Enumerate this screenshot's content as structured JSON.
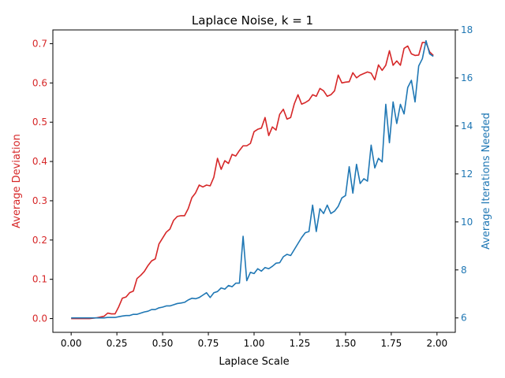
{
  "chart_data": {
    "type": "line",
    "title": "Laplace Noise, k = 1",
    "xlabel": "Laplace Scale",
    "ylabel_left": "Average Deviation",
    "ylabel_right": "Average Iterations Needed",
    "xlim": [
      -0.1,
      2.1
    ],
    "ylim_left": [
      -0.035,
      0.735
    ],
    "ylim_right": [
      5.4,
      18.0
    ],
    "xticks": [
      "0.00",
      "0.25",
      "0.50",
      "0.75",
      "1.00",
      "1.25",
      "1.50",
      "1.75",
      "2.00"
    ],
    "yticks_left": [
      "0.0",
      "0.1",
      "0.2",
      "0.3",
      "0.4",
      "0.5",
      "0.6",
      "0.7"
    ],
    "yticks_right": [
      "6",
      "8",
      "10",
      "12",
      "14",
      "16",
      "18"
    ],
    "grid": false,
    "colors": {
      "left": "#d62728",
      "right": "#1f77b4"
    },
    "x": [
      0.0,
      0.02,
      0.04,
      0.06,
      0.08,
      0.1,
      0.12,
      0.14,
      0.16,
      0.18,
      0.2,
      0.22,
      0.24,
      0.26,
      0.28,
      0.3,
      0.32,
      0.34,
      0.36,
      0.38,
      0.4,
      0.42,
      0.44,
      0.46,
      0.48,
      0.5,
      0.52,
      0.54,
      0.56,
      0.58,
      0.6,
      0.62,
      0.64,
      0.66,
      0.68,
      0.7,
      0.72,
      0.74,
      0.76,
      0.78,
      0.8,
      0.82,
      0.84,
      0.86,
      0.88,
      0.9,
      0.92,
      0.94,
      0.96,
      0.98,
      1.0,
      1.02,
      1.04,
      1.06,
      1.08,
      1.1,
      1.12,
      1.14,
      1.16,
      1.18,
      1.2,
      1.22,
      1.24,
      1.26,
      1.28,
      1.3,
      1.32,
      1.34,
      1.36,
      1.38,
      1.4,
      1.42,
      1.44,
      1.46,
      1.48,
      1.5,
      1.52,
      1.54,
      1.56,
      1.58,
      1.6,
      1.62,
      1.64,
      1.66,
      1.68,
      1.7,
      1.72,
      1.74,
      1.76,
      1.78,
      1.8,
      1.82,
      1.84,
      1.86,
      1.88,
      1.9,
      1.92,
      1.94,
      1.96,
      1.98
    ],
    "series": [
      {
        "name": "Average Deviation",
        "axis": "left",
        "values": [
          0.0,
          0.0,
          0.0,
          0.0,
          0.0,
          0.0,
          0.001,
          0.002,
          0.004,
          0.006,
          0.014,
          0.012,
          0.012,
          0.03,
          0.052,
          0.055,
          0.066,
          0.07,
          0.102,
          0.11,
          0.12,
          0.135,
          0.147,
          0.152,
          0.19,
          0.205,
          0.22,
          0.228,
          0.25,
          0.26,
          0.262,
          0.262,
          0.28,
          0.308,
          0.32,
          0.34,
          0.335,
          0.34,
          0.338,
          0.36,
          0.408,
          0.38,
          0.402,
          0.395,
          0.418,
          0.414,
          0.428,
          0.44,
          0.44,
          0.446,
          0.476,
          0.482,
          0.485,
          0.512,
          0.466,
          0.488,
          0.48,
          0.52,
          0.533,
          0.508,
          0.512,
          0.547,
          0.57,
          0.546,
          0.55,
          0.556,
          0.57,
          0.566,
          0.586,
          0.58,
          0.566,
          0.57,
          0.58,
          0.62,
          0.6,
          0.602,
          0.603,
          0.626,
          0.613,
          0.62,
          0.624,
          0.628,
          0.625,
          0.608,
          0.646,
          0.632,
          0.645,
          0.682,
          0.645,
          0.656,
          0.645,
          0.688,
          0.694,
          0.674,
          0.67,
          0.671,
          0.703,
          0.703,
          0.679,
          0.67
        ]
      },
      {
        "name": "Average Iterations Needed",
        "axis": "right",
        "values": [
          6.0,
          6.0,
          6.0,
          6.0,
          6.0,
          6.0,
          6.0,
          6.0,
          6.0,
          6.0,
          6.02,
          6.02,
          6.02,
          6.05,
          6.08,
          6.1,
          6.1,
          6.15,
          6.15,
          6.2,
          6.25,
          6.28,
          6.35,
          6.35,
          6.42,
          6.45,
          6.5,
          6.5,
          6.55,
          6.6,
          6.62,
          6.65,
          6.75,
          6.82,
          6.8,
          6.85,
          6.95,
          7.05,
          6.85,
          7.05,
          7.1,
          7.25,
          7.2,
          7.35,
          7.3,
          7.45,
          7.45,
          9.4,
          7.55,
          7.9,
          7.85,
          8.05,
          7.95,
          8.1,
          8.05,
          8.15,
          8.28,
          8.3,
          8.55,
          8.65,
          8.6,
          8.85,
          9.1,
          9.35,
          9.55,
          9.6,
          10.7,
          9.6,
          10.55,
          10.35,
          10.7,
          10.35,
          10.45,
          10.65,
          11.0,
          11.1,
          12.3,
          11.2,
          12.4,
          11.6,
          11.8,
          11.7,
          13.2,
          12.25,
          12.65,
          12.5,
          14.9,
          13.3,
          15.0,
          14.1,
          14.9,
          14.5,
          15.6,
          15.9,
          15.0,
          16.5,
          16.8,
          17.55,
          17.0,
          16.9
        ]
      }
    ]
  }
}
